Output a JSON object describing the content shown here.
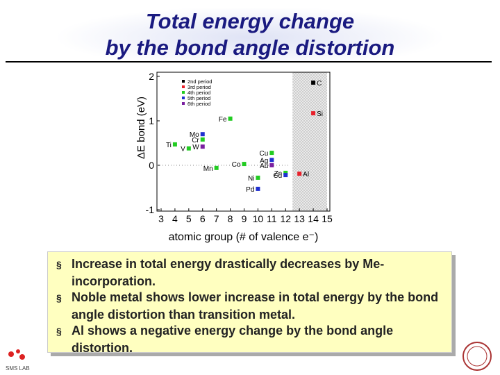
{
  "slide": {
    "title_lines": [
      "Total energy change",
      "by the bond angle distortion"
    ],
    "bullets": [
      "Increase in total energy drastically decreases by Me-incorporation.",
      "Noble metal shows lower increase in total energy by the bond angle distortion than transition metal.",
      "Al shows a negative energy change by the bond angle distortion."
    ],
    "footer_logo": "SMS LAB"
  },
  "chart_data": {
    "type": "scatter",
    "x_label": "atomic group (# of valence e⁻)",
    "y_label": "ΔE bond (eV)",
    "xlim": [
      3,
      15
    ],
    "ylim": [
      -1,
      2
    ],
    "xticks": [
      3,
      4,
      5,
      6,
      7,
      8,
      9,
      10,
      11,
      12,
      13,
      14,
      15
    ],
    "yticks": [
      -1,
      0,
      1,
      2
    ],
    "highlight_xrange": [
      12.5,
      15
    ],
    "legend": "top-left",
    "series": [
      {
        "name": "2nd period",
        "color": "#000000",
        "x": [
          14
        ],
        "values": [
          1.86
        ],
        "labels": [
          "C"
        ]
      },
      {
        "name": "3rd period",
        "color": "#e8202a",
        "x": [
          14,
          13
        ],
        "values": [
          1.17,
          -0.19
        ],
        "labels": [
          "Si",
          "Al"
        ]
      },
      {
        "name": "4th period",
        "color": "#22cc22",
        "x": [
          8,
          4,
          5,
          6,
          9,
          7,
          10,
          11,
          12
        ],
        "values": [
          1.05,
          0.47,
          0.38,
          0.58,
          0.03,
          -0.06,
          -0.28,
          0.28,
          -0.17
        ],
        "labels": [
          "Fe",
          "Ti",
          "V",
          "Cr",
          "Co",
          "Mn",
          "Ni",
          "Cu",
          "Zn"
        ]
      },
      {
        "name": "5th period",
        "color": "#2030d0",
        "x": [
          6,
          10,
          11,
          12
        ],
        "values": [
          0.7,
          -0.53,
          0.12,
          -0.22
        ],
        "labels": [
          "Mo",
          "Pd",
          "Ag",
          "Cd"
        ]
      },
      {
        "name": "6th period",
        "color": "#7a1fa0",
        "x": [
          6,
          11
        ],
        "values": [
          0.42,
          0.0
        ],
        "labels": [
          "W",
          "Au"
        ]
      }
    ]
  }
}
